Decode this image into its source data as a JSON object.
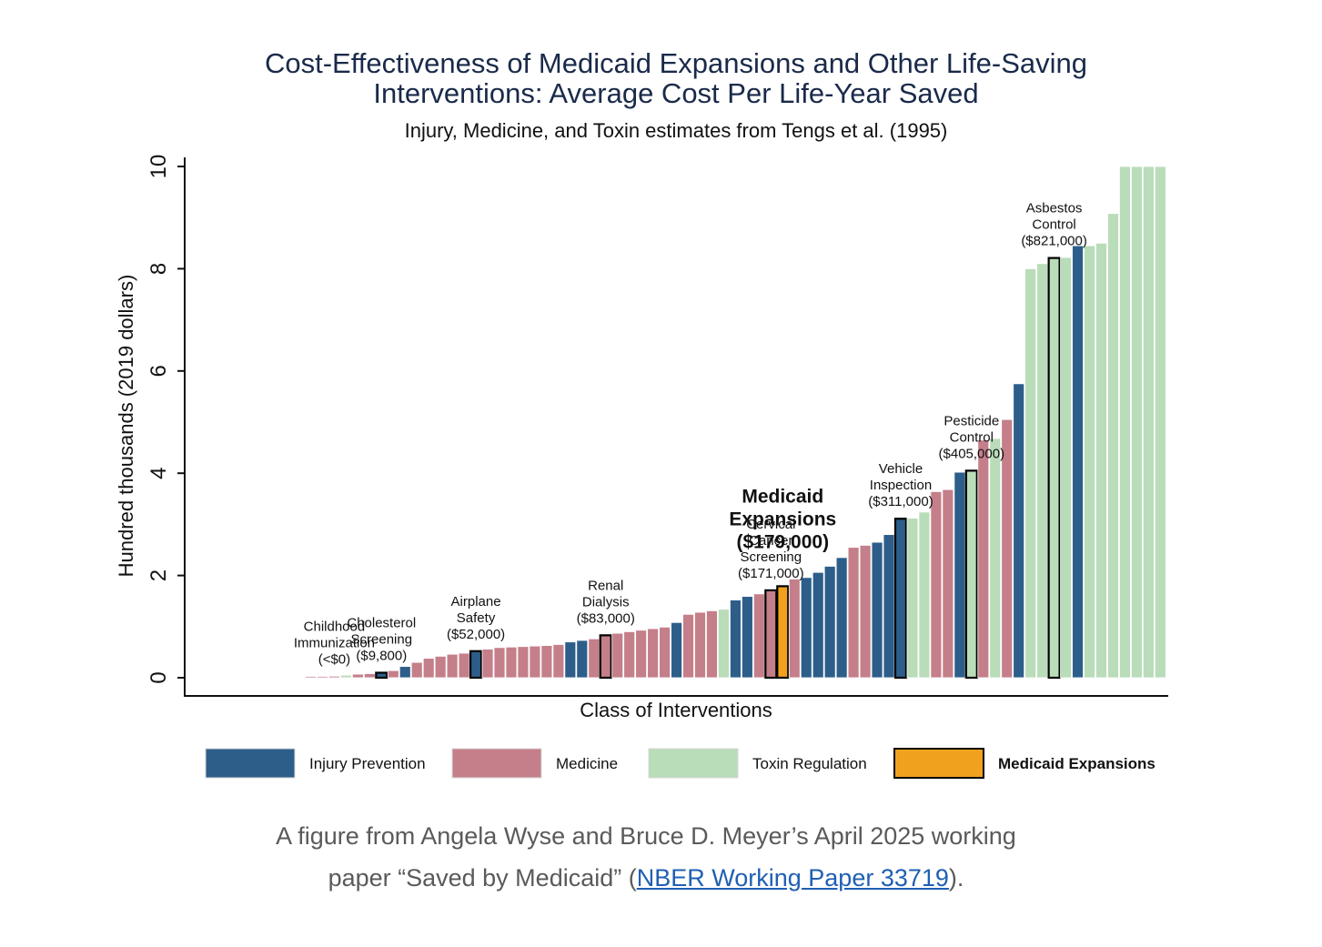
{
  "chart_data": {
    "type": "bar",
    "title": "Cost-Effectiveness of Medicaid Expansions and Other Life-Saving Interventions: Average Cost Per Life-Year Saved",
    "title_lines": [
      "Cost-Effectiveness of Medicaid Expansions and Other Life-Saving",
      "Interventions: Average Cost Per Life-Year Saved"
    ],
    "subtitle": "Injury, Medicine, and Toxin estimates from Tengs et al. (1995)",
    "xlabel": "Class of Interventions",
    "ylabel": "Hundred thousands (2019 dollars)",
    "ylim": [
      0,
      10
    ],
    "yticks": [
      0,
      2,
      4,
      6,
      8,
      10
    ],
    "grid": false,
    "legend_position": "bottom",
    "colors": {
      "injury": "#2d5e8a",
      "medicine": "#c47f8a",
      "toxin": "#b9dcb9",
      "medicaid": "#f0a21f"
    },
    "legend": [
      {
        "key": "injury",
        "label": "Injury Prevention",
        "bold": false
      },
      {
        "key": "medicine",
        "label": "Medicine",
        "bold": false
      },
      {
        "key": "toxin",
        "label": "Toxin Regulation",
        "bold": false
      },
      {
        "key": "medicaid",
        "label": "Medicaid Expansions",
        "bold": true
      }
    ],
    "bars": [
      {
        "v": 0.0,
        "c": "medicine"
      },
      {
        "v": 0.02,
        "c": "medicine"
      },
      {
        "v": 0.03,
        "c": "medicine"
      },
      {
        "v": 0.05,
        "c": "toxin"
      },
      {
        "v": 0.07,
        "c": "medicine"
      },
      {
        "v": 0.08,
        "c": "medicine"
      },
      {
        "v": 0.098,
        "c": "injury",
        "h": true
      },
      {
        "v": 0.14,
        "c": "medicine"
      },
      {
        "v": 0.22,
        "c": "injury"
      },
      {
        "v": 0.3,
        "c": "medicine"
      },
      {
        "v": 0.38,
        "c": "medicine"
      },
      {
        "v": 0.42,
        "c": "medicine"
      },
      {
        "v": 0.46,
        "c": "medicine"
      },
      {
        "v": 0.48,
        "c": "medicine"
      },
      {
        "v": 0.52,
        "c": "injury",
        "h": true
      },
      {
        "v": 0.56,
        "c": "medicine"
      },
      {
        "v": 0.59,
        "c": "medicine"
      },
      {
        "v": 0.6,
        "c": "medicine"
      },
      {
        "v": 0.61,
        "c": "medicine"
      },
      {
        "v": 0.62,
        "c": "medicine"
      },
      {
        "v": 0.63,
        "c": "medicine"
      },
      {
        "v": 0.65,
        "c": "medicine"
      },
      {
        "v": 0.7,
        "c": "injury"
      },
      {
        "v": 0.73,
        "c": "injury"
      },
      {
        "v": 0.76,
        "c": "medicine"
      },
      {
        "v": 0.83,
        "c": "medicine",
        "h": true
      },
      {
        "v": 0.87,
        "c": "medicine"
      },
      {
        "v": 0.9,
        "c": "medicine"
      },
      {
        "v": 0.93,
        "c": "medicine"
      },
      {
        "v": 0.96,
        "c": "medicine"
      },
      {
        "v": 0.99,
        "c": "medicine"
      },
      {
        "v": 1.08,
        "c": "injury"
      },
      {
        "v": 1.24,
        "c": "medicine"
      },
      {
        "v": 1.28,
        "c": "medicine"
      },
      {
        "v": 1.31,
        "c": "medicine"
      },
      {
        "v": 1.34,
        "c": "toxin"
      },
      {
        "v": 1.52,
        "c": "injury"
      },
      {
        "v": 1.59,
        "c": "injury"
      },
      {
        "v": 1.64,
        "c": "medicine"
      },
      {
        "v": 1.71,
        "c": "medicine",
        "h": true
      },
      {
        "v": 1.79,
        "c": "medicaid",
        "h": true
      },
      {
        "v": 1.93,
        "c": "medicine"
      },
      {
        "v": 1.96,
        "c": "injury"
      },
      {
        "v": 2.06,
        "c": "injury"
      },
      {
        "v": 2.18,
        "c": "injury"
      },
      {
        "v": 2.35,
        "c": "injury"
      },
      {
        "v": 2.55,
        "c": "medicine"
      },
      {
        "v": 2.59,
        "c": "medicine"
      },
      {
        "v": 2.65,
        "c": "injury"
      },
      {
        "v": 2.8,
        "c": "injury"
      },
      {
        "v": 3.11,
        "c": "injury",
        "h": true
      },
      {
        "v": 3.12,
        "c": "toxin"
      },
      {
        "v": 3.24,
        "c": "toxin"
      },
      {
        "v": 3.64,
        "c": "medicine"
      },
      {
        "v": 3.68,
        "c": "medicine"
      },
      {
        "v": 4.02,
        "c": "injury"
      },
      {
        "v": 4.05,
        "c": "toxin",
        "h": true
      },
      {
        "v": 4.65,
        "c": "medicine"
      },
      {
        "v": 4.68,
        "c": "toxin"
      },
      {
        "v": 5.05,
        "c": "medicine"
      },
      {
        "v": 5.75,
        "c": "injury"
      },
      {
        "v": 8.0,
        "c": "toxin"
      },
      {
        "v": 8.1,
        "c": "toxin"
      },
      {
        "v": 8.21,
        "c": "toxin",
        "h": true
      },
      {
        "v": 8.22,
        "c": "toxin"
      },
      {
        "v": 8.45,
        "c": "injury"
      },
      {
        "v": 8.45,
        "c": "toxin"
      },
      {
        "v": 8.5,
        "c": "toxin"
      },
      {
        "v": 9.08,
        "c": "toxin"
      },
      {
        "v": 10.0,
        "c": "toxin"
      },
      {
        "v": 10.0,
        "c": "toxin"
      },
      {
        "v": 10.0,
        "c": "toxin"
      },
      {
        "v": 10.0,
        "c": "toxin"
      }
    ],
    "annotations": [
      {
        "lines": [
          "Childhood",
          "Immunization",
          "(<$0)"
        ],
        "bar": 2,
        "bold": false
      },
      {
        "lines": [
          "Cholesterol",
          "Screening",
          "($9,800)"
        ],
        "bar": 6,
        "bold": false
      },
      {
        "lines": [
          "Airplane",
          "Safety",
          "($52,000)"
        ],
        "bar": 14,
        "bold": false
      },
      {
        "lines": [
          "Renal",
          "Dialysis",
          "($83,000)"
        ],
        "bar": 25,
        "bold": false
      },
      {
        "lines": [
          "Cervical",
          "Cancer",
          "Screening",
          "($171,000)"
        ],
        "bar": 39,
        "bold": false
      },
      {
        "lines": [
          "Medicaid",
          "Expansions",
          "($179,000)"
        ],
        "bar": 40,
        "bold": true
      },
      {
        "lines": [
          "Vehicle",
          "Inspection",
          "($311,000)"
        ],
        "bar": 50,
        "bold": false
      },
      {
        "lines": [
          "Pesticide",
          "Control",
          "($405,000)"
        ],
        "bar": 56,
        "bold": false
      },
      {
        "lines": [
          "Asbestos",
          "Control",
          "($821,000)"
        ],
        "bar": 63,
        "bold": false
      }
    ]
  },
  "caption": {
    "text_before": "A figure from Angela Wyse and Bruce D. Meyer’s April 2025 working paper “Saved by Medicaid” (",
    "link_text": "NBER Working Paper 33719",
    "text_after": ")."
  }
}
